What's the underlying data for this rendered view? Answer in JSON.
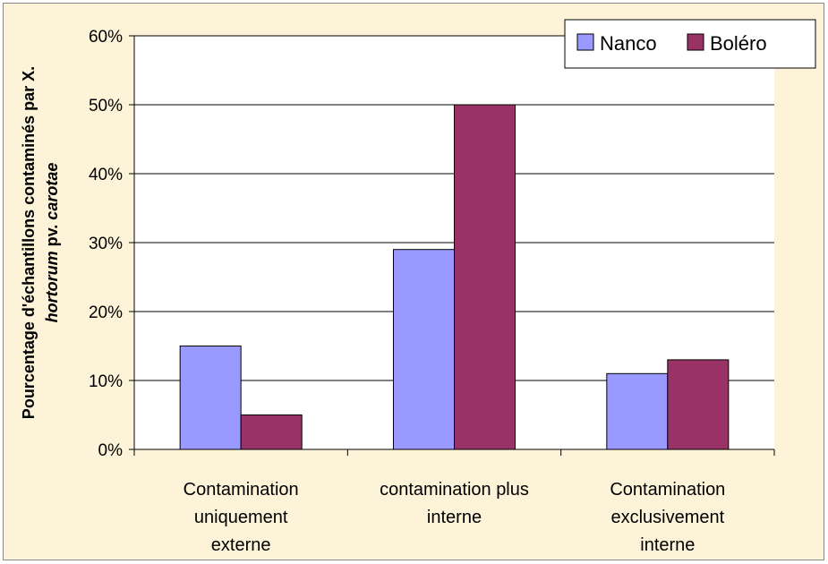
{
  "chart_data": {
    "type": "bar",
    "categories": [
      [
        "Contamination",
        "uniquement",
        "externe"
      ],
      [
        "contamination plus",
        "interne"
      ],
      [
        "Contamination",
        "exclusivement",
        "interne"
      ]
    ],
    "series": [
      {
        "name": "Nanco",
        "values": [
          15,
          29,
          11
        ],
        "color": "#9999ff"
      },
      {
        "name": "Boléro",
        "values": [
          5,
          50,
          13
        ],
        "color": "#993366"
      }
    ],
    "yticks": [
      "0%",
      "10%",
      "20%",
      "30%",
      "40%",
      "50%",
      "60%"
    ],
    "ylim": [
      0,
      60
    ],
    "ylabel": {
      "line1": "Pourcentage d'échantillons contaminés par X.",
      "line2_italic_a": "hortorum",
      "line2_plain": " pv. ",
      "line2_italic_b": "carotae"
    },
    "grid": true,
    "legend_position": "top-right",
    "colors": {
      "background": "#fdf3d8",
      "plot_area": "#ffffff",
      "grid": "#000000"
    }
  }
}
